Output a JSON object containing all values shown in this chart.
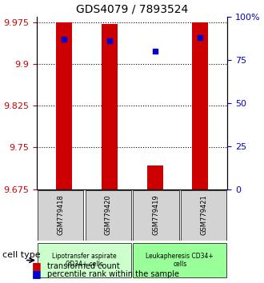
{
  "title": "GDS4079 / 7893524",
  "samples": [
    "GSM779418",
    "GSM779420",
    "GSM779419",
    "GSM779421"
  ],
  "bar_values": [
    9.975,
    9.972,
    9.718,
    9.975
  ],
  "bar_bottom": 9.675,
  "percentile_values": [
    87,
    86,
    80,
    88
  ],
  "left_ylim": [
    9.675,
    9.985
  ],
  "left_yticks": [
    9.675,
    9.75,
    9.825,
    9.9,
    9.975
  ],
  "right_ylim": [
    0,
    100
  ],
  "right_yticks": [
    0,
    25,
    50,
    75,
    100
  ],
  "right_yticklabels": [
    "0",
    "25",
    "50",
    "75",
    "100%"
  ],
  "bar_color": "#cc0000",
  "percentile_color": "#0000cc",
  "grid_color": "#000000",
  "groups": [
    {
      "label": "Lipotransfer aspirate\nCD34+ cells",
      "color": "#ccffcc",
      "start": 0,
      "end": 2
    },
    {
      "label": "Leukapheresis CD34+\ncells",
      "color": "#99ff99",
      "start": 2,
      "end": 4
    }
  ],
  "cell_type_label": "cell type",
  "legend_items": [
    {
      "color": "#cc0000",
      "label": "transformed count"
    },
    {
      "color": "#0000cc",
      "label": "percentile rank within the sample"
    }
  ],
  "bar_width": 0.35
}
